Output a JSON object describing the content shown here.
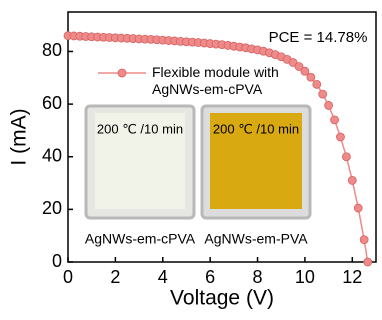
{
  "chart_data": {
    "type": "line",
    "xlabel": "Voltage (V)",
    "ylabel": "I (mA)",
    "annotations": [
      "PCE = 14.78%",
      "200 ℃ /10 min",
      "200 ℃ /10 min",
      "AgNWs-em-cPVA",
      "AgNWs-em-PVA"
    ],
    "xlim": [
      0,
      13
    ],
    "xticks": [
      0,
      2,
      4,
      6,
      8,
      10,
      12
    ],
    "ylim": [
      0,
      95
    ],
    "yticks": [
      0,
      20,
      40,
      60,
      80
    ],
    "x": [
      0,
      0.25,
      0.5,
      0.75,
      1,
      1.25,
      1.5,
      1.75,
      2,
      2.25,
      2.5,
      2.75,
      3,
      3.25,
      3.5,
      3.75,
      4,
      4.25,
      4.5,
      4.75,
      5,
      5.25,
      5.5,
      5.75,
      6,
      6.25,
      6.5,
      6.75,
      7,
      7.25,
      7.5,
      7.75,
      8,
      8.25,
      8.5,
      8.75,
      9,
      9.25,
      9.5,
      9.75,
      10,
      10.25,
      10.5,
      10.75,
      11,
      11.25,
      11.5,
      11.75,
      12,
      12.25,
      12.5,
      12.65
    ],
    "series": [
      {
        "name": "Flexible module with AgNWs-em-cPVA",
        "color": "#ee8a8a",
        "values": [
          86.0,
          85.9,
          85.8,
          85.7,
          85.6,
          85.5,
          85.4,
          85.3,
          85.2,
          85.1,
          85.0,
          84.9,
          84.8,
          84.7,
          84.6,
          84.45,
          84.3,
          84.15,
          84.0,
          83.85,
          83.7,
          83.55,
          83.4,
          83.2,
          83.0,
          82.8,
          82.6,
          82.3,
          82.0,
          81.7,
          81.4,
          81.0,
          80.6,
          80.1,
          79.5,
          78.8,
          78.0,
          77.0,
          75.8,
          74.3,
          72.5,
          70.2,
          67.5,
          63.8,
          59.5,
          54.0,
          47.5,
          40.0,
          31.0,
          20.5,
          8.5,
          0
        ]
      }
    ]
  }
}
